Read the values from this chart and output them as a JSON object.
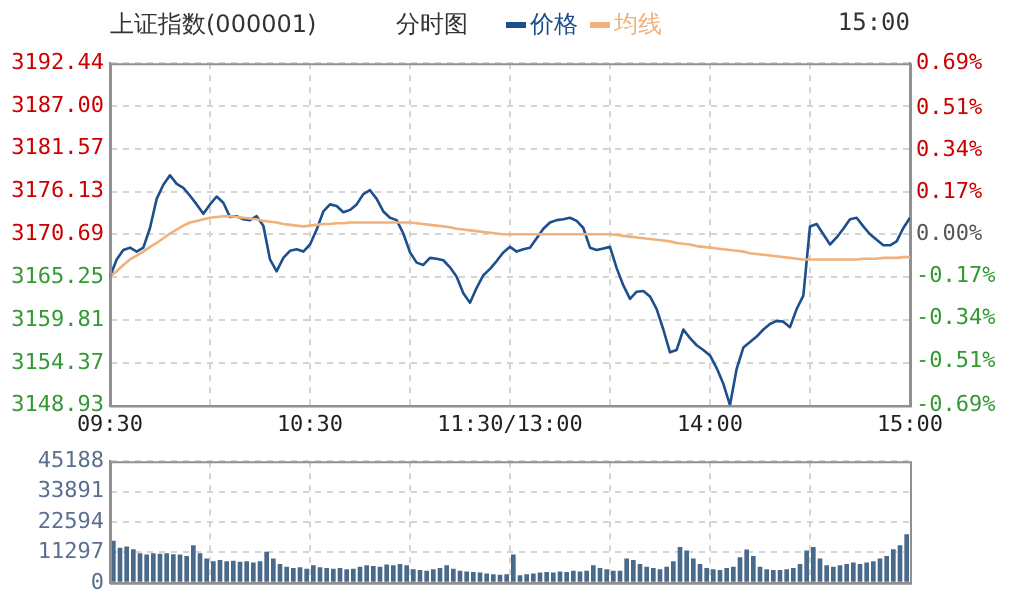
{
  "chart_data": [
    {
      "type": "line",
      "title": "上证指数(000001)",
      "subtitle": "分时图",
      "annotations": [
        "15:00"
      ],
      "legend": "top",
      "grid": true,
      "marker": "none",
      "line_style": "solid",
      "categories": [
        "09:30",
        null,
        null,
        null,
        null,
        null,
        null,
        null,
        null,
        null,
        null,
        null,
        null,
        null,
        null,
        null,
        null,
        null,
        null,
        null,
        null,
        null,
        null,
        null,
        null,
        null,
        null,
        null,
        null,
        null,
        "10:30",
        null,
        null,
        null,
        null,
        null,
        null,
        null,
        null,
        null,
        null,
        null,
        null,
        null,
        null,
        null,
        null,
        null,
        null,
        null,
        null,
        null,
        null,
        null,
        null,
        null,
        null,
        null,
        null,
        null,
        "11:30/13:00",
        null,
        null,
        null,
        null,
        null,
        null,
        null,
        null,
        null,
        null,
        null,
        null,
        null,
        null,
        null,
        null,
        null,
        null,
        null,
        null,
        null,
        null,
        null,
        null,
        null,
        null,
        null,
        null,
        null,
        "14:00",
        null,
        null,
        null,
        null,
        null,
        null,
        null,
        null,
        null,
        null,
        null,
        null,
        null,
        null,
        null,
        null,
        null,
        null,
        null,
        null,
        null,
        null,
        null,
        null,
        null,
        null,
        null,
        null,
        null,
        "15:00"
      ],
      "ylim": [
        3148.93,
        3192.44
      ],
      "yticks": [
        3148.93,
        3154.37,
        3159.81,
        3165.25,
        3170.69,
        3176.13,
        3181.57,
        {
          "value": 3187,
          "label": "3187.00"
        },
        3192.44
      ],
      "y2lim": [
        -0.69,
        0.69
      ],
      "y2ticks": [
        {
          "value": -0.69,
          "label": "-0.69%"
        },
        {
          "value": -0.51,
          "label": "-0.51%"
        },
        {
          "value": -0.34,
          "label": "-0.34%"
        },
        {
          "value": -0.17,
          "label": "-0.17%"
        },
        {
          "value": 0,
          "label": "0.00%"
        },
        {
          "value": 0.17,
          "label": "0.17%"
        },
        {
          "value": 0.34,
          "label": "0.34%"
        },
        {
          "value": 0.51,
          "label": "0.51%"
        },
        {
          "value": 0.69,
          "label": "0.69%"
        }
      ],
      "series": [
        {
          "name": "价格",
          "color": "#1c4f8c",
          "values": [
            3165.3,
            3167.5,
            3168.7,
            3169.0,
            3168.5,
            3169.0,
            3171.5,
            3175.2,
            3177.0,
            3178.2,
            3177.1,
            3176.6,
            3175.6,
            3174.5,
            3173.3,
            3174.5,
            3175.5,
            3174.7,
            3172.9,
            3173.0,
            3172.6,
            3172.5,
            3173.0,
            3171.8,
            3167.5,
            3166.0,
            3167.7,
            3168.6,
            3168.8,
            3168.5,
            3169.4,
            3171.3,
            3173.6,
            3174.5,
            3174.3,
            3173.5,
            3173.8,
            3174.5,
            3175.8,
            3176.3,
            3175.2,
            3173.6,
            3172.8,
            3172.5,
            3170.8,
            3168.4,
            3167.1,
            3166.8,
            3167.7,
            3167.6,
            3167.4,
            3166.5,
            3165.3,
            3163.2,
            3162.0,
            3163.9,
            3165.5,
            3166.3,
            3167.3,
            3168.4,
            3169.1,
            3168.5,
            3168.8,
            3169.0,
            3170.2,
            3171.4,
            3172.2,
            3172.5,
            3172.6,
            3172.8,
            3172.4,
            3171.5,
            3169.0,
            3168.7,
            3168.9,
            3169.1,
            3166.4,
            3164.2,
            3162.5,
            3163.4,
            3163.5,
            3162.8,
            3161.2,
            3158.6,
            3155.7,
            3156.0,
            3158.6,
            3157.5,
            3156.6,
            3156.0,
            3155.3,
            3153.7,
            3151.7,
            3149.0,
            3153.6,
            3156.3,
            3157.0,
            3157.7,
            3158.6,
            3159.3,
            3159.7,
            3159.6,
            3158.9,
            3161.2,
            3162.9,
            3171.7,
            3172.0,
            3170.7,
            3169.4,
            3170.3,
            3171.4,
            3172.6,
            3172.8,
            3171.7,
            3170.7,
            3170.0,
            3169.3,
            3169.3,
            3169.8,
            3171.5,
            3172.8
          ]
        },
        {
          "name": "均线",
          "color": "#f0b27a",
          "values": [
            3165.3,
            3166.0,
            3166.8,
            3167.5,
            3168.0,
            3168.5,
            3169.1,
            3169.6,
            3170.2,
            3170.8,
            3171.3,
            3171.8,
            3172.2,
            3172.4,
            3172.6,
            3172.8,
            3172.9,
            3173.0,
            3173.0,
            3172.9,
            3172.8,
            3172.7,
            3172.6,
            3172.4,
            3172.3,
            3172.2,
            3172.0,
            3171.9,
            3171.8,
            3171.7,
            3171.8,
            3171.9,
            3172.0,
            3172.0,
            3172.1,
            3172.1,
            3172.2,
            3172.2,
            3172.2,
            3172.2,
            3172.2,
            3172.2,
            3172.2,
            3172.2,
            3172.2,
            3172.2,
            3172.1,
            3172.0,
            3171.9,
            3171.8,
            3171.7,
            3171.6,
            3171.4,
            3171.3,
            3171.2,
            3171.1,
            3171.0,
            3170.9,
            3170.8,
            3170.7,
            3170.7,
            3170.7,
            3170.7,
            3170.7,
            3170.7,
            3170.7,
            3170.7,
            3170.7,
            3170.7,
            3170.7,
            3170.7,
            3170.7,
            3170.7,
            3170.7,
            3170.7,
            3170.7,
            3170.6,
            3170.5,
            3170.4,
            3170.3,
            3170.2,
            3170.1,
            3170.0,
            3169.9,
            3169.8,
            3169.6,
            3169.5,
            3169.4,
            3169.2,
            3169.1,
            3169.0,
            3168.9,
            3168.8,
            3168.7,
            3168.6,
            3168.5,
            3168.3,
            3168.2,
            3168.1,
            3168.0,
            3167.9,
            3167.8,
            3167.7,
            3167.6,
            3167.5,
            3167.5,
            3167.5,
            3167.5,
            3167.5,
            3167.5,
            3167.5,
            3167.5,
            3167.5,
            3167.6,
            3167.6,
            3167.6,
            3167.7,
            3167.7,
            3167.7,
            3167.8,
            3167.8
          ]
        }
      ]
    },
    {
      "type": "bar",
      "grid": true,
      "tick_labels": "y",
      "color": "#4a6a8c",
      "ylim": [
        0,
        45188
      ],
      "yticks": [
        0,
        11297,
        22594,
        33891,
        45188
      ],
      "categories": [
        null,
        null,
        null,
        null,
        null,
        null,
        null,
        null,
        null,
        null,
        null,
        null,
        null,
        null,
        null,
        null,
        null,
        null,
        null,
        null,
        null,
        null,
        null,
        null,
        null,
        null,
        null,
        null,
        null,
        null,
        null,
        null,
        null,
        null,
        null,
        null,
        null,
        null,
        null,
        null,
        null,
        null,
        null,
        null,
        null,
        null,
        null,
        null,
        null,
        null,
        null,
        null,
        null,
        null,
        null,
        null,
        null,
        null,
        null,
        null,
        null,
        null,
        null,
        null,
        null,
        null,
        null,
        null,
        null,
        null,
        null,
        null,
        null,
        null,
        null,
        null,
        null,
        null,
        null,
        null,
        null,
        null,
        null,
        null,
        null,
        null,
        null,
        null,
        null,
        null,
        null,
        null,
        null,
        null,
        null,
        null,
        null,
        null,
        null,
        null,
        null,
        null,
        null,
        null,
        null,
        null,
        null,
        null,
        null,
        null,
        null,
        null,
        null,
        null,
        null,
        null,
        null,
        null,
        null,
        null
      ],
      "values": [
        15600,
        13000,
        13500,
        12500,
        11000,
        10500,
        11000,
        10800,
        11000,
        10600,
        10500,
        10000,
        14000,
        11000,
        9000,
        8000,
        8500,
        8000,
        8200,
        7800,
        8000,
        7500,
        8000,
        11500,
        9000,
        7000,
        6000,
        5500,
        5800,
        5200,
        6500,
        5800,
        5500,
        5200,
        5500,
        5000,
        5200,
        6000,
        6500,
        6200,
        6000,
        6800,
        6500,
        7000,
        6500,
        5000,
        4800,
        4500,
        5000,
        5500,
        6500,
        5200,
        4500,
        4200,
        4000,
        3800,
        3500,
        3200,
        3000,
        3200,
        10500,
        2800,
        3200,
        3500,
        3800,
        4000,
        3800,
        4200,
        4000,
        4500,
        4200,
        4500,
        6500,
        5500,
        5000,
        4500,
        4500,
        9000,
        8500,
        7000,
        6000,
        5500,
        5000,
        6000,
        8000,
        13300,
        12000,
        9000,
        7000,
        5500,
        5000,
        4800,
        5500,
        6000,
        9500,
        12400,
        10000,
        6000,
        5000,
        4800,
        4800,
        5000,
        5500,
        7000,
        12000,
        13300,
        9000,
        6500,
        6000,
        6500,
        7000,
        7500,
        7000,
        7500,
        8000,
        9000,
        10000,
        12500,
        14000,
        18000
      ]
    }
  ]
}
